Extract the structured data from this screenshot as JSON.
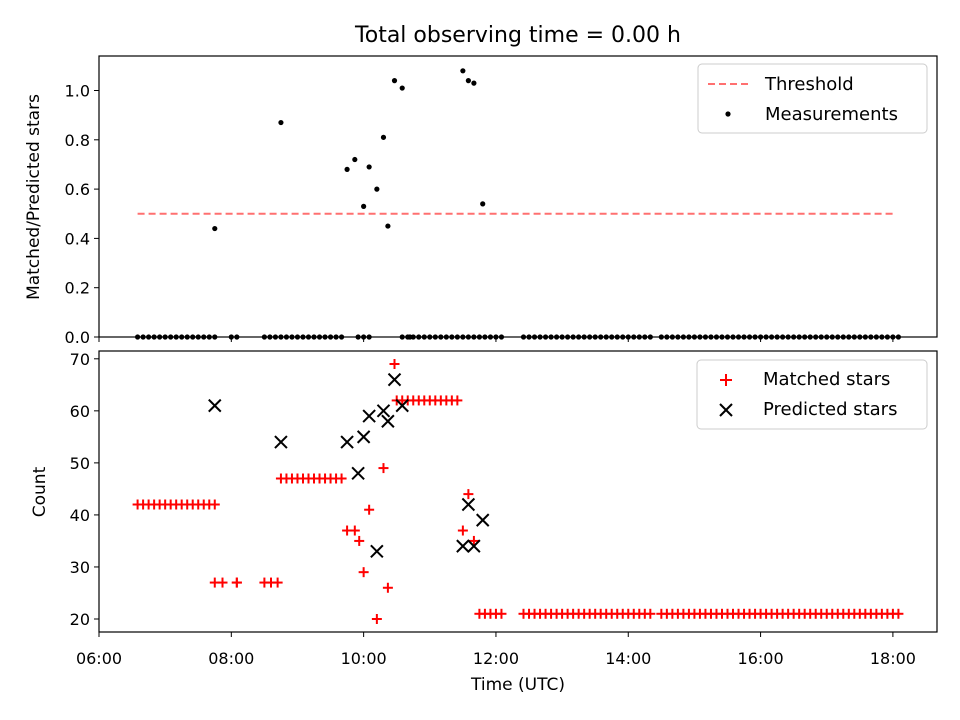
{
  "chart_data": [
    {
      "type": "scatter",
      "title": "Total observing time = 0.00 h",
      "xlabel": "",
      "ylabel": "Matched/Predicted stars",
      "ylim": [
        0,
        1.14
      ],
      "xlim": [
        "06:00",
        "18:40"
      ],
      "yticks": [
        0.0,
        0.2,
        0.4,
        0.6,
        0.8,
        1.0
      ],
      "yticklabels": [
        "0.0",
        "0.2",
        "0.4",
        "0.6",
        "0.8",
        "1.0"
      ],
      "legend": "top-right",
      "colors": {
        "threshold": "#ff7070",
        "measurements": "#000000"
      },
      "series": [
        {
          "name": "Threshold",
          "kind": "dashed-line",
          "x": [
            "06:35",
            "18:00"
          ],
          "y": [
            0.5,
            0.5
          ]
        },
        {
          "name": "Measurements",
          "kind": "points",
          "x": [
            "07:45",
            "08:45",
            "09:45",
            "09:52",
            "10:00",
            "10:05",
            "10:12",
            "10:18",
            "10:22",
            "10:28",
            "10:35",
            "10:42",
            "11:30",
            "11:35",
            "11:40",
            "11:48"
          ],
          "y": [
            0.44,
            0.87,
            0.68,
            0.72,
            0.53,
            0.69,
            0.6,
            0.81,
            0.45,
            1.04,
            1.01,
            0.0,
            1.08,
            1.04,
            1.03,
            0.54
          ]
        },
        {
          "name": "",
          "kind": "zero-points",
          "x_ranges": [
            [
              "06:35",
              "07:25"
            ],
            [
              "07:30",
              "07:45"
            ],
            [
              "08:00",
              "08:05"
            ],
            [
              "08:30",
              "09:20"
            ],
            [
              "09:25",
              "09:40"
            ],
            [
              "09:55",
              "10:05"
            ],
            [
              "10:35",
              "11:50"
            ],
            [
              "11:55",
              "12:05"
            ],
            [
              "12:25",
              "14:20"
            ],
            [
              "14:30",
              "18:05"
            ]
          ],
          "y": 0
        }
      ]
    },
    {
      "type": "scatter",
      "title": "",
      "xlabel": "Time (UTC)",
      "ylabel": "Count",
      "ylim": [
        17.5,
        71.5
      ],
      "xlim": [
        "06:00",
        "18:40"
      ],
      "yticks": [
        20,
        30,
        40,
        50,
        60,
        70
      ],
      "yticklabels": [
        "20",
        "30",
        "40",
        "50",
        "60",
        "70"
      ],
      "xticks": [
        "06:00",
        "08:00",
        "10:00",
        "12:00",
        "14:00",
        "16:00",
        "18:00"
      ],
      "legend": "top-right",
      "colors": {
        "matched": "#ff0000",
        "predicted": "#000000"
      },
      "series": [
        {
          "name": "Matched stars",
          "kind": "plus",
          "runs": [
            {
              "from": "06:35",
              "to": "07:25",
              "y": 42
            },
            {
              "from": "07:30",
              "to": "07:45",
              "y": 42
            },
            {
              "from": "07:45",
              "to": "07:52",
              "y": 27
            },
            {
              "from": "08:05",
              "to": "08:05",
              "y": 27
            },
            {
              "from": "08:30",
              "to": "08:42",
              "y": 27
            },
            {
              "from": "08:45",
              "to": "09:20",
              "y": 47
            },
            {
              "from": "09:25",
              "to": "09:40",
              "y": 47
            },
            {
              "from": "10:30",
              "to": "11:25",
              "y": 62
            },
            {
              "from": "11:45",
              "to": "12:05",
              "y": 21
            },
            {
              "from": "12:25",
              "to": "14:20",
              "y": 21
            },
            {
              "from": "14:30",
              "to": "18:05",
              "y": 21
            }
          ],
          "x": [
            "09:45",
            "09:52",
            "09:56",
            "10:00",
            "10:05",
            "10:12",
            "10:18",
            "10:22",
            "10:28",
            "11:30",
            "11:35",
            "11:40"
          ],
          "y": [
            37,
            37,
            35,
            29,
            41,
            20,
            49,
            26,
            69,
            37,
            44,
            35
          ]
        },
        {
          "name": "Predicted stars",
          "kind": "x",
          "x": [
            "07:45",
            "08:45",
            "09:45",
            "09:55",
            "10:00",
            "10:05",
            "10:12",
            "10:18",
            "10:22",
            "10:28",
            "10:35",
            "11:30",
            "11:35",
            "11:40",
            "11:48"
          ],
          "y": [
            61,
            54,
            54,
            48,
            55,
            59,
            33,
            60,
            58,
            66,
            61,
            34,
            42,
            34,
            39
          ]
        }
      ]
    }
  ]
}
